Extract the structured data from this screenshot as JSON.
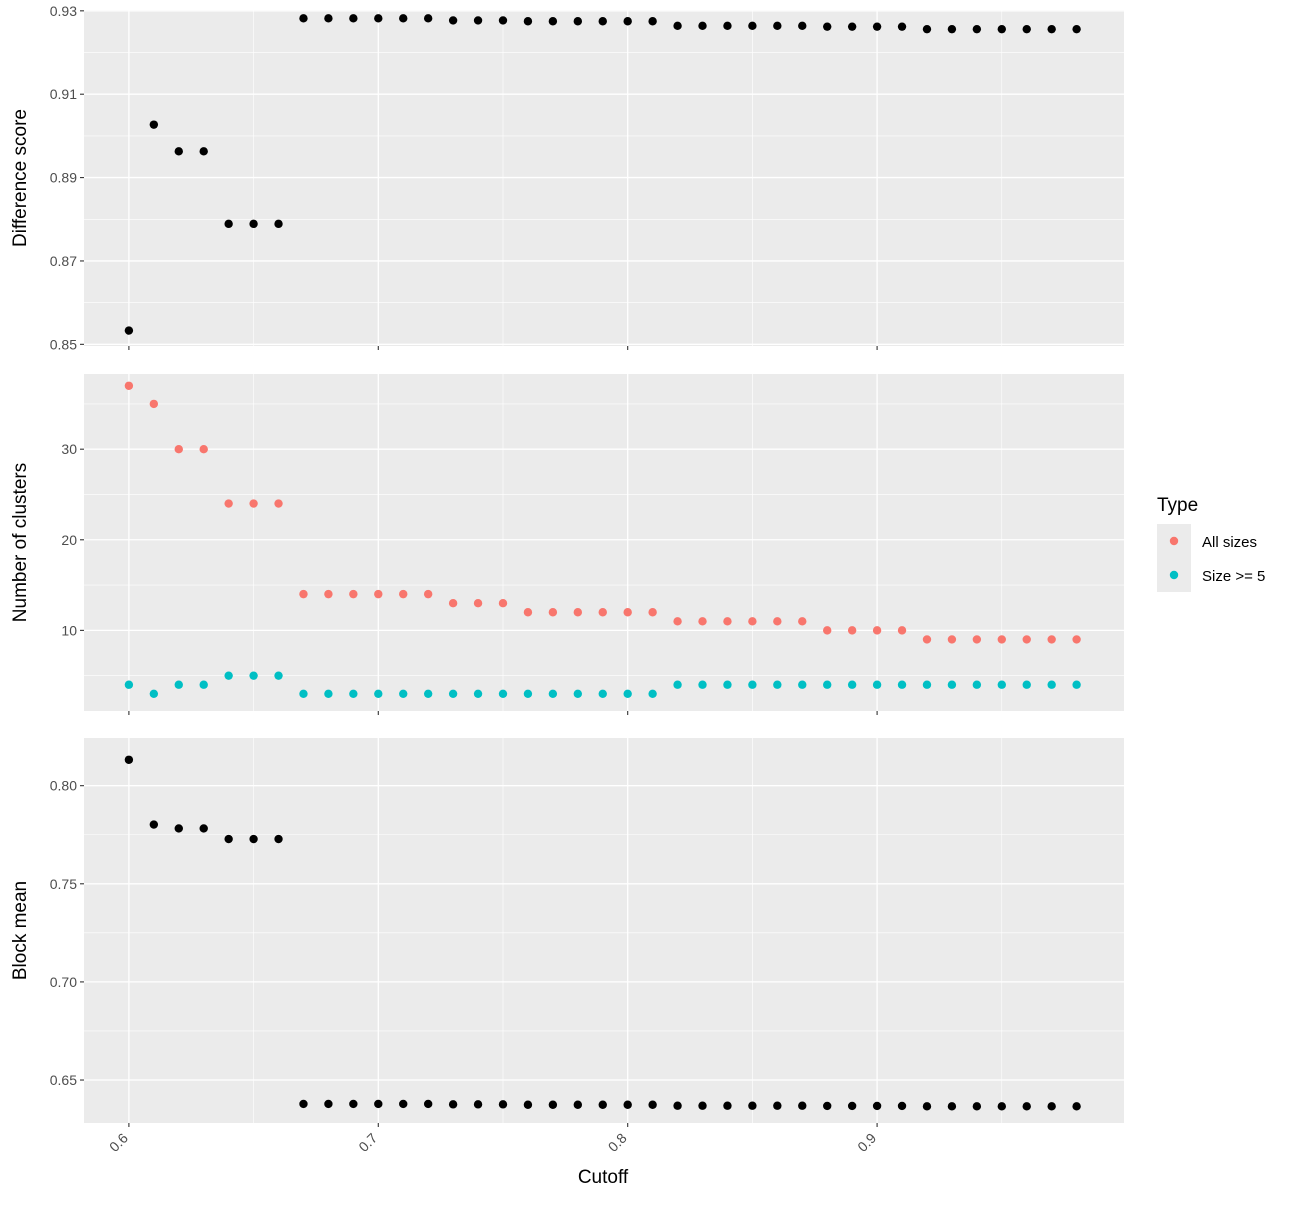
{
  "chart_data": {
    "type": "scatter",
    "xlabel": "Cutoff",
    "xlim": [
      0.582,
      0.999
    ],
    "xticks": [
      0.6,
      0.7,
      0.8,
      0.9
    ],
    "x": [
      0.6,
      0.61,
      0.62,
      0.63,
      0.64,
      0.65,
      0.66,
      0.67,
      0.68,
      0.69,
      0.7,
      0.71,
      0.72,
      0.73,
      0.74,
      0.75,
      0.76,
      0.77,
      0.78,
      0.79,
      0.8,
      0.81,
      0.82,
      0.83,
      0.84,
      0.85,
      0.86,
      0.87,
      0.88,
      0.89,
      0.9,
      0.91,
      0.92,
      0.93,
      0.94,
      0.95,
      0.96,
      0.97,
      0.98
    ],
    "grid": true,
    "legend": {
      "title": "Type",
      "placement": "right",
      "entries": [
        {
          "label": "All sizes",
          "color": "#F8766D"
        },
        {
          "label": "Size >= 5",
          "color": "#00BFC4"
        }
      ]
    },
    "panels": [
      {
        "ylabel": "Difference score",
        "ylim": [
          0.8496,
          0.9302
        ],
        "yticks": [
          0.85,
          0.87,
          0.89,
          0.91,
          0.93
        ],
        "series": [
          {
            "color": "#000000",
            "values": [
              0.8533,
              0.9027,
              0.8963,
              0.8963,
              0.8789,
              0.8789,
              0.8789,
              0.9282,
              0.9282,
              0.9282,
              0.9282,
              0.9282,
              0.9282,
              0.9277,
              0.9277,
              0.9277,
              0.9275,
              0.9275,
              0.9275,
              0.9275,
              0.9275,
              0.9275,
              0.9264,
              0.9264,
              0.9264,
              0.9264,
              0.9264,
              0.9264,
              0.9262,
              0.9262,
              0.9262,
              0.9262,
              0.9256,
              0.9256,
              0.9256,
              0.9256,
              0.9256,
              0.9256,
              0.9256
            ]
          }
        ]
      },
      {
        "ylabel": "Number of clusters",
        "ylim": [
          1.1,
          38.3
        ],
        "yticks": [
          10,
          20,
          30
        ],
        "series": [
          {
            "name": "All sizes",
            "color": "#F8766D",
            "values": [
              37,
              35,
              30,
              30,
              24,
              24,
              24,
              14,
              14,
              14,
              14,
              14,
              14,
              13,
              13,
              13,
              12,
              12,
              12,
              12,
              12,
              12,
              11,
              11,
              11,
              11,
              11,
              11,
              10,
              10,
              10,
              10,
              9,
              9,
              9,
              9,
              9,
              9,
              9
            ]
          },
          {
            "name": "Size >= 5",
            "color": "#00BFC4",
            "values": [
              4,
              3,
              4,
              4,
              5,
              5,
              5,
              3,
              3,
              3,
              3,
              3,
              3,
              3,
              3,
              3,
              3,
              3,
              3,
              3,
              3,
              3,
              4,
              4,
              4,
              4,
              4,
              4,
              4,
              4,
              4,
              4,
              4,
              4,
              4,
              4,
              4,
              4,
              4
            ]
          }
        ]
      },
      {
        "ylabel": "Block mean",
        "ylim": [
          0.6281,
          0.8243
        ],
        "yticks": [
          0.65,
          0.7,
          0.75,
          0.8
        ],
        "series": [
          {
            "color": "#000000",
            "values": [
              0.8132,
              0.7802,
              0.7782,
              0.7782,
              0.7728,
              0.7728,
              0.7728,
              0.6378,
              0.6378,
              0.6378,
              0.6378,
              0.6378,
              0.6378,
              0.6376,
              0.6376,
              0.6376,
              0.6374,
              0.6374,
              0.6374,
              0.6374,
              0.6374,
              0.6374,
              0.6369,
              0.6369,
              0.6369,
              0.6369,
              0.6369,
              0.6369,
              0.6368,
              0.6368,
              0.6368,
              0.6368,
              0.6366,
              0.6366,
              0.6366,
              0.6366,
              0.6366,
              0.6366,
              0.6366
            ]
          }
        ]
      }
    ]
  }
}
